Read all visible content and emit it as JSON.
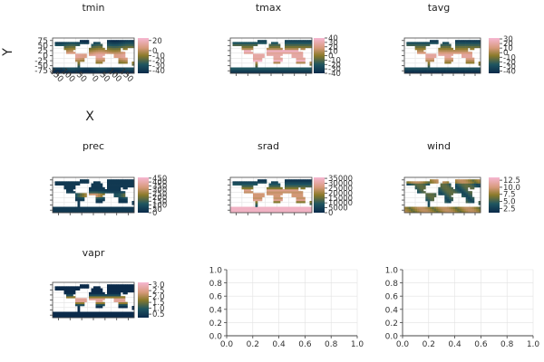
{
  "colors": {
    "low": "#0a2a4a",
    "mid": "#8a7a2a",
    "high": "#f6b7d2",
    "frame": "#444444",
    "grid": "#e2e2e2",
    "ocean": "#ffffff"
  },
  "chart_data": [
    {
      "type": "heatmap",
      "title": "tmin",
      "xlabel": "X",
      "ylabel": "Y",
      "x_ticks": [
        "-150",
        "-100",
        "-50",
        "0",
        "50",
        "100",
        "150"
      ],
      "y_ticks": [
        "75",
        "50",
        "25",
        "0",
        "-25",
        "-50",
        "-75"
      ],
      "colorbar_ticks": [
        "20",
        "0",
        "-10",
        "-20",
        "-30",
        "-40"
      ],
      "colorbar_range": [
        -45,
        25
      ]
    },
    {
      "type": "heatmap",
      "title": "tmax",
      "colorbar_ticks": [
        "40",
        "30",
        "20",
        "10",
        "0",
        "-10",
        "-20",
        "-30",
        "-40"
      ],
      "colorbar_range": [
        -40,
        40
      ]
    },
    {
      "type": "heatmap",
      "title": "tavg",
      "colorbar_ticks": [
        "30",
        "20",
        "10",
        "0",
        "-10",
        "-20",
        "-30",
        "-40"
      ],
      "colorbar_range": [
        -45,
        32
      ]
    },
    {
      "type": "heatmap",
      "title": "prec",
      "colorbar_ticks": [
        "450",
        "400",
        "350",
        "300",
        "250",
        "200",
        "150",
        "100",
        "50",
        "0"
      ],
      "colorbar_range": [
        0,
        460
      ]
    },
    {
      "type": "heatmap",
      "title": "srad",
      "colorbar_ticks": [
        "35000",
        "30000",
        "25000",
        "20000",
        "15000",
        "10000",
        "5000",
        "0"
      ],
      "colorbar_range": [
        0,
        36000
      ]
    },
    {
      "type": "heatmap",
      "title": "wind",
      "colorbar_ticks": [
        "12.5",
        "10.0",
        "7.5",
        "5.0",
        "2.5"
      ],
      "colorbar_range": [
        1,
        13.5
      ]
    },
    {
      "type": "heatmap",
      "title": "vapr",
      "colorbar_ticks": [
        "3.0",
        "2.5",
        "2.0",
        "1.5",
        "1.0",
        "0.5"
      ],
      "colorbar_range": [
        0.2,
        3.2
      ]
    },
    {
      "type": "scatter",
      "title": "",
      "x_ticks": [
        "0.0",
        "0.2",
        "0.4",
        "0.6",
        "0.8",
        "1.0"
      ],
      "y_ticks": [
        "0.0",
        "0.2",
        "0.4",
        "0.6",
        "0.8",
        "1.0"
      ],
      "xlim": [
        0,
        1
      ],
      "ylim": [
        0,
        1
      ],
      "grid": true
    },
    {
      "type": "scatter",
      "title": "",
      "x_ticks": [
        "0.0",
        "0.2",
        "0.4",
        "0.6",
        "0.8",
        "1.0"
      ],
      "y_ticks": [
        "0.0",
        "0.2",
        "0.4",
        "0.6",
        "0.8",
        "1.0"
      ],
      "xlim": [
        0,
        1
      ],
      "ylim": [
        0,
        1
      ],
      "grid": true
    }
  ]
}
